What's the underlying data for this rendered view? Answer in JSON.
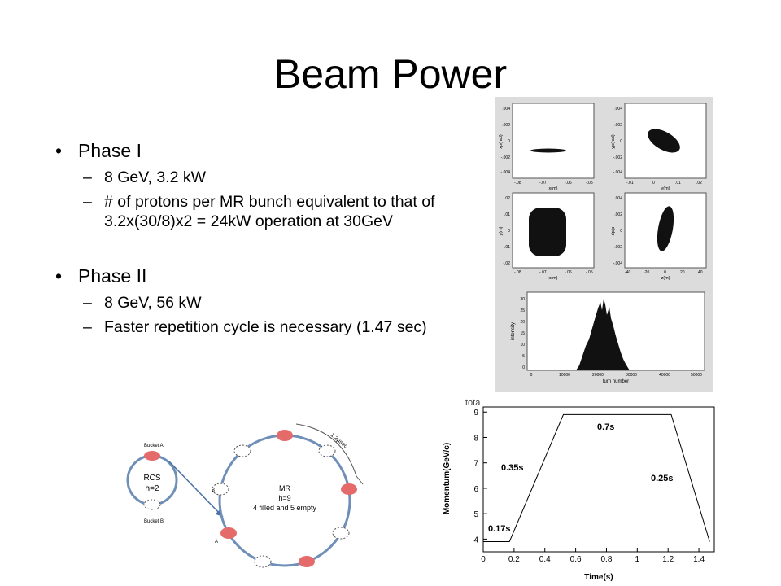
{
  "slide": {
    "title": "Beam Power",
    "phase1": {
      "label": "Phase I",
      "items": [
        "8 GeV, 3.2 kW",
        "# of protons per MR bunch equivalent to that of 3.2x(30/8)x2 = 24kW operation at 30GeV"
      ]
    },
    "phase2": {
      "label": "Phase II",
      "items": [
        "8 GeV, 56 kW",
        "Faster repetition cycle is necessary (1.47 sec)"
      ]
    }
  },
  "phase_panels": {
    "top_left": {
      "ylabel": "xp(rad)",
      "xlabel": "x(m)",
      "yticks": [
        ".004",
        ".002",
        "0",
        "-.002",
        "-.004"
      ],
      "xticks": [
        "-.08",
        "-.07",
        "-.06",
        "-.05"
      ]
    },
    "top_right": {
      "ylabel": "yp(rad)",
      "xlabel": "y(m)",
      "yticks": [
        ".004",
        ".002",
        "0",
        "-.002",
        "-.004"
      ],
      "xticks": [
        "-.01",
        "0",
        ".01",
        ".02"
      ]
    },
    "mid_left": {
      "ylabel": "y(m)",
      "xlabel": "x(m)",
      "yticks": [
        ".02",
        ".01",
        "0",
        "-.01",
        "-.02"
      ],
      "xticks": [
        "-.08",
        "-.07",
        "-.06",
        "-.05"
      ]
    },
    "mid_right": {
      "ylabel": "dp/p",
      "xlabel": "z(m)",
      "yticks": [
        ".004",
        ".002",
        "0",
        "-.002",
        "-.004"
      ],
      "xticks": [
        "-40",
        "-20",
        "0",
        "20",
        "40"
      ]
    },
    "histogram": {
      "ylabel": "intensity",
      "xlabel": "turn number",
      "yticks": [
        "30",
        "25",
        "20",
        "15",
        "10",
        "5",
        "0"
      ],
      "xticks": [
        "0",
        "10000",
        "20000",
        "30000",
        "40000",
        "50000"
      ]
    }
  },
  "ring_diagram": {
    "bucket_a": "Bucket A",
    "bucket_b": "Bucket B",
    "rcs": "RCS",
    "rcs_h": "h=2",
    "mr": "MR",
    "mr_h": "h=9",
    "mr_fill": "4 filled and 5 empty",
    "timing": "1.2µsec",
    "label_a": "A",
    "label_b": "B",
    "bunch_label": "Beam"
  },
  "momentum_plot": {
    "header": "tota",
    "ylabel": "Momentum(GeV/c)",
    "xlabel": "Time(s)",
    "yticks": [
      "4",
      "5",
      "6",
      "7",
      "8",
      "9"
    ],
    "xticks": [
      "0",
      "0.2",
      "0.4",
      "0.6",
      "0.8",
      "1",
      "1.2",
      "1.4"
    ],
    "annotations": [
      "0.17s",
      "0.35s",
      "0.7s",
      "0.25s"
    ]
  },
  "chart_data": {
    "type": "line",
    "x": [
      0,
      0.17,
      0.52,
      1.22,
      1.47
    ],
    "y": [
      3.9,
      3.9,
      8.9,
      8.9,
      3.9
    ],
    "xlabel": "Time(s)",
    "ylabel": "Momentum(GeV/c)",
    "xlim": [
      0,
      1.5
    ],
    "ylim": [
      3.5,
      9.2
    ],
    "annotations": [
      "0.17s",
      "0.35s",
      "0.7s",
      "0.25s"
    ]
  }
}
